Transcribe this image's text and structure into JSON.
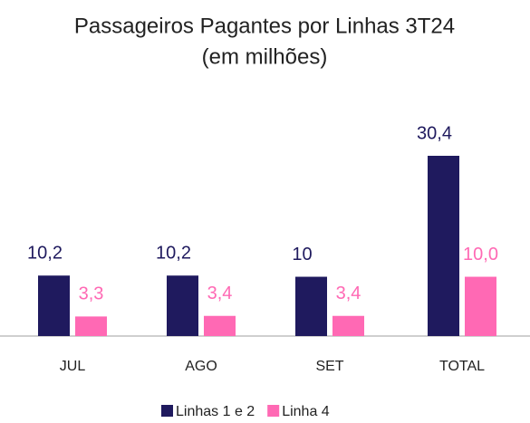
{
  "chart_data": {
    "type": "bar",
    "title": "Passageiros Pagantes por Linhas 3T24",
    "subtitle": "(em milhões)",
    "categories": [
      "JUL",
      "AGO",
      "SET",
      "TOTAL"
    ],
    "series": [
      {
        "name": "Linhas 1 e 2",
        "color": "#1f1a5e",
        "values": [
          10.2,
          10.2,
          10,
          30.4
        ],
        "value_labels": [
          "10,2",
          "10,2",
          "10",
          "30,4"
        ]
      },
      {
        "name": "Linha 4",
        "color": "#ff69b4",
        "values": [
          3.3,
          3.4,
          3.4,
          10.0
        ],
        "value_labels": [
          "3,3",
          "3,4",
          "3,4",
          "10,0"
        ]
      }
    ],
    "legend": "bottom"
  }
}
